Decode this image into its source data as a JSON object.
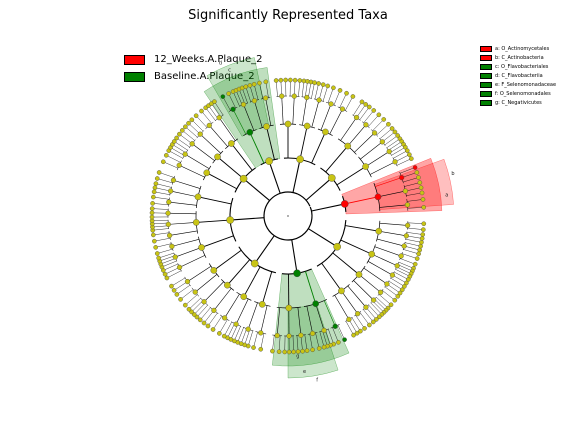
{
  "title": "Significantly Represented Taxa",
  "classes": [
    {
      "name": "12_Weeks.A.Plaque_2",
      "color": "#ff0000"
    },
    {
      "name": "Baseline.A.Plaque_2",
      "color": "#008000"
    }
  ],
  "taxa_legend": [
    {
      "label": "a: O_Actinomycetales",
      "color": "#ff0000"
    },
    {
      "label": "b: C_Actinobacteria",
      "color": "#ff0000"
    },
    {
      "label": "c: O_Flavobacteriales",
      "color": "#008000"
    },
    {
      "label": "d: C_Flavobacteriia",
      "color": "#008000"
    },
    {
      "label": "e: F_Selenomonadaceae",
      "color": "#008000"
    },
    {
      "label": "f: O_Selenomonadales",
      "color": "#008000"
    },
    {
      "label": "g: C_Negativicutes",
      "color": "#008000"
    }
  ],
  "sector_letters": [
    "a",
    "b",
    "c",
    "d",
    "e",
    "f",
    "g"
  ],
  "colors": {
    "node": "#c8c414",
    "node_stroke": "#555555",
    "enriched_red": "#ff0000",
    "enriched_green": "#008000"
  }
}
